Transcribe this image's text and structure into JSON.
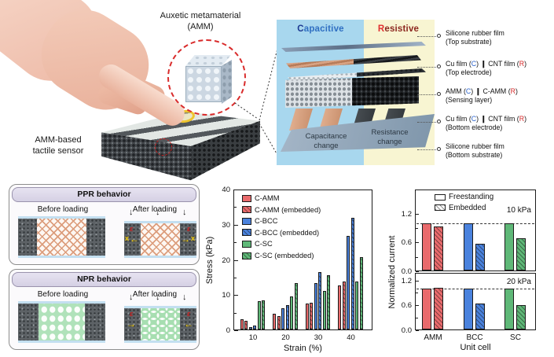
{
  "top_left": {
    "amm_label": [
      "Auxetic metamaterial",
      "(AMM)"
    ],
    "sensor_label": [
      "AMM-based",
      "tactile sensor"
    ]
  },
  "stack": {
    "header_capacitive": [
      {
        "t": "C",
        "c": "cap-initial"
      },
      {
        "t": "apacitive",
        "c": "cap-rest"
      }
    ],
    "header_resistive": [
      {
        "t": "R",
        "c": "res-initial"
      },
      {
        "t": "esistive",
        "c": "res-rest"
      }
    ],
    "labels": [
      {
        "line1": [
          {
            "t": "Silicone rubber film"
          }
        ],
        "line2": "(Top substrate)"
      },
      {
        "line1": [
          {
            "t": "Cu film ("
          },
          {
            "t": "C",
            "c": "c-blue"
          },
          {
            "t": ") "
          },
          {
            "t": "❙",
            "c": "c-sep"
          },
          {
            "t": " CNT film ("
          },
          {
            "t": "R",
            "c": "c-red"
          },
          {
            "t": ")"
          }
        ],
        "line2": "(Top electrode)"
      },
      {
        "line1": [
          {
            "t": "AMM ("
          },
          {
            "t": "C",
            "c": "c-blue"
          },
          {
            "t": ") "
          },
          {
            "t": "❙",
            "c": "c-sep"
          },
          {
            "t": " C-AMM ("
          },
          {
            "t": "R",
            "c": "c-red"
          },
          {
            "t": ")"
          }
        ],
        "line2": "(Sensing layer)"
      },
      {
        "line1": [
          {
            "t": "Cu film ("
          },
          {
            "t": "C",
            "c": "c-blue"
          },
          {
            "t": ") "
          },
          {
            "t": "❙",
            "c": "c-sep"
          },
          {
            "t": " CNT film ("
          },
          {
            "t": "R",
            "c": "c-red"
          },
          {
            "t": ")"
          }
        ],
        "line2": "(Bottom electrode)"
      },
      {
        "line1": [
          {
            "t": "Silicone rubber film"
          }
        ],
        "line2": "(Bottom substrate)"
      }
    ],
    "capacitance_change": [
      "Capacitance",
      "change"
    ],
    "resistance_change": [
      "Resistance",
      "change"
    ]
  },
  "ppr": {
    "title": "PPR behavior",
    "before": "Before loading",
    "after": "After loading",
    "epsilon": "ε",
    "x_mark": "x",
    "arrow_left": "←",
    "arrow_right": "→",
    "down_arrow": "↓"
  },
  "npr": {
    "title": "NPR behavior",
    "before": "Before loading",
    "after": "After loading",
    "epsilon": "ε",
    "arrow_left": "←",
    "arrow_right": "→",
    "down_arrow": "↓"
  },
  "chart_data": [
    {
      "type": "bar",
      "title": "",
      "xlabel": "Strain (%)",
      "ylabel": "Stress (kPa)",
      "categories": [
        "10",
        "20",
        "30",
        "40"
      ],
      "ylim": [
        0,
        40
      ],
      "yticks": [
        0,
        10,
        20,
        30,
        40
      ],
      "yticks_minor": [
        5,
        15,
        25,
        35
      ],
      "grid": false,
      "legend_position": "upper left",
      "series": [
        {
          "name": "C-AMM",
          "color": "#e96a6c",
          "hatch": false,
          "values": [
            3.1,
            4.7,
            7.5,
            12.8
          ]
        },
        {
          "name": "C-AMM (embedded)",
          "color": "#e96a6c",
          "hatch": true,
          "values": [
            2.7,
            4.1,
            7.9,
            13.9
          ]
        },
        {
          "name": "C-BCC",
          "color": "#4a82dd",
          "hatch": false,
          "values": [
            1.0,
            6.2,
            13.4,
            26.8
          ]
        },
        {
          "name": "C-BCC (embedded)",
          "color": "#4a82dd",
          "hatch": true,
          "values": [
            1.4,
            7.1,
            16.5,
            32.0
          ]
        },
        {
          "name": "C-SC",
          "color": "#5fb878",
          "hatch": false,
          "values": [
            8.3,
            9.5,
            11.1,
            13.9
          ]
        },
        {
          "name": "C-SC (embedded)",
          "color": "#5fb878",
          "hatch": true,
          "values": [
            8.6,
            13.4,
            15.7,
            20.8
          ]
        }
      ]
    },
    {
      "type": "bar",
      "xlabel": "Unit cell",
      "ylabel": "Normalized current",
      "categories": [
        "AMM",
        "BCC",
        "SC"
      ],
      "group_colors": [
        "#e96a6c",
        "#4a82dd",
        "#5fb878"
      ],
      "legend": [
        "Freestanding",
        "Embedded"
      ],
      "yticks": [
        0,
        0.6,
        1.2
      ],
      "yticks_minor": [
        0.3,
        0.9
      ],
      "panels": [
        {
          "label": "10 kPa",
          "ylim": [
            0,
            1.7
          ],
          "ref_line": 1.0,
          "freestanding": [
            1.0,
            1.0,
            1.0
          ],
          "embedded": [
            0.93,
            0.57,
            0.68
          ]
        },
        {
          "label": "20 kPa",
          "ylim": [
            0,
            1.38
          ],
          "ref_line": 1.0,
          "freestanding": [
            1.0,
            1.0,
            1.0
          ],
          "embedded": [
            1.03,
            0.64,
            0.61
          ]
        }
      ]
    }
  ]
}
